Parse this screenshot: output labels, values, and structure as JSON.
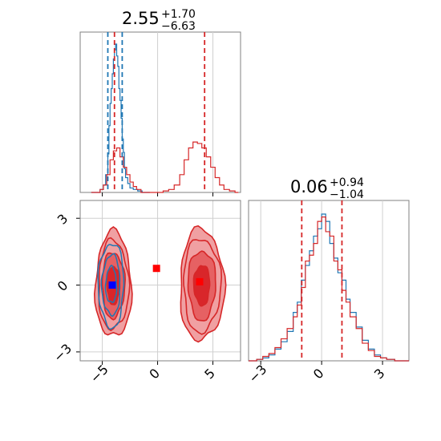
{
  "colors": {
    "red": "#d62728",
    "blue": "#1f77b4",
    "red_fill_light": "#f0a0a2",
    "red_fill_mid": "#e66163",
    "red_fill_dark": "#d9262a",
    "blue_fill": "#e9eef6",
    "grid": "#d0d0d0",
    "frame": "#808080",
    "marker_red": "#ff0000",
    "marker_blue": "#0000ff"
  },
  "chart_data": [
    {
      "type": "histogram",
      "panel": "marginal-param-1",
      "title": {
        "value": "2.55",
        "upper": "+1.70",
        "lower": "−6.63"
      },
      "xlim": [
        -7.0,
        7.5
      ],
      "x_ticks": [
        -5,
        0,
        5
      ],
      "series": [
        {
          "color_key": "blue",
          "bins_x": [
            -6.0,
            -5.6,
            -5.2,
            -4.9,
            -4.7,
            -4.5,
            -4.4,
            -4.3,
            -4.2,
            -4.1,
            -4.0,
            -3.9,
            -3.8,
            -3.7,
            -3.6,
            -3.5,
            -3.4,
            -3.3,
            -3.2,
            -3.1,
            -3.0,
            -2.9,
            -2.7,
            -2.5,
            -2.2,
            -1.8,
            -1.4,
            -1.0
          ],
          "bins_y": [
            0.0,
            0.0,
            0.02,
            0.05,
            0.12,
            0.26,
            0.45,
            0.6,
            0.7,
            0.8,
            0.9,
            0.96,
            1.0,
            0.92,
            0.85,
            0.7,
            0.62,
            0.5,
            0.36,
            0.27,
            0.16,
            0.1,
            0.06,
            0.03,
            0.02,
            0.01,
            0.0,
            0.0
          ]
        },
        {
          "color_key": "red",
          "bins_x": [
            -6.0,
            -5.6,
            -5.2,
            -4.9,
            -4.6,
            -4.3,
            -4.0,
            -3.7,
            -3.4,
            -3.1,
            -2.8,
            -2.5,
            -2.2,
            -1.9,
            -1.5,
            -1.0,
            -0.5,
            0.0,
            0.5,
            1.0,
            1.5,
            2.0,
            2.4,
            2.8,
            3.2,
            3.6,
            4.0,
            4.4,
            4.8,
            5.2,
            5.6,
            6.0,
            6.5,
            7.0
          ],
          "bins_y": [
            0.0,
            0.0,
            0.02,
            0.05,
            0.12,
            0.22,
            0.28,
            0.3,
            0.24,
            0.17,
            0.12,
            0.07,
            0.04,
            0.02,
            0.0,
            0.0,
            0.0,
            0.0,
            0.01,
            0.02,
            0.05,
            0.12,
            0.22,
            0.3,
            0.34,
            0.33,
            0.3,
            0.24,
            0.17,
            0.1,
            0.05,
            0.02,
            0.01,
            0.0
          ]
        }
      ],
      "quantile_lines": [
        {
          "x": -4.5,
          "color_key": "blue"
        },
        {
          "x": -3.2,
          "color_key": "blue"
        },
        {
          "x": -3.9,
          "color_key": "red"
        },
        {
          "x": 4.25,
          "color_key": "red"
        }
      ]
    },
    {
      "type": "histogram",
      "panel": "marginal-param-2",
      "title": {
        "value": "0.06",
        "upper": "+0.94",
        "lower": "−1.04"
      },
      "xlim": [
        -3.6,
        4.3
      ],
      "x_ticks": [
        -3,
        0,
        3
      ],
      "series": [
        {
          "color_key": "blue",
          "bins_x": [
            -3.6,
            -3.2,
            -2.9,
            -2.6,
            -2.3,
            -2.0,
            -1.7,
            -1.4,
            -1.2,
            -1.0,
            -0.8,
            -0.6,
            -0.4,
            -0.2,
            0.0,
            0.2,
            0.4,
            0.6,
            0.8,
            1.0,
            1.2,
            1.4,
            1.7,
            2.0,
            2.3,
            2.6,
            2.9,
            3.2,
            3.6,
            4.0
          ],
          "bins_y": [
            0.0,
            0.01,
            0.02,
            0.04,
            0.08,
            0.13,
            0.2,
            0.33,
            0.4,
            0.55,
            0.65,
            0.75,
            0.85,
            0.9,
            1.0,
            0.95,
            0.8,
            0.7,
            0.6,
            0.55,
            0.42,
            0.33,
            0.23,
            0.14,
            0.08,
            0.04,
            0.02,
            0.01,
            0.0,
            0.0
          ]
        },
        {
          "color_key": "red",
          "bins_x": [
            -3.6,
            -3.2,
            -2.9,
            -2.6,
            -2.3,
            -2.0,
            -1.7,
            -1.4,
            -1.2,
            -1.0,
            -0.8,
            -0.6,
            -0.4,
            -0.2,
            0.0,
            0.2,
            0.4,
            0.6,
            0.8,
            1.0,
            1.2,
            1.4,
            1.7,
            2.0,
            2.3,
            2.6,
            2.9,
            3.2,
            3.6,
            4.0
          ],
          "bins_y": [
            0.0,
            0.01,
            0.03,
            0.05,
            0.09,
            0.15,
            0.22,
            0.3,
            0.38,
            0.5,
            0.68,
            0.72,
            0.8,
            0.95,
            0.98,
            0.88,
            0.85,
            0.68,
            0.62,
            0.48,
            0.4,
            0.3,
            0.22,
            0.12,
            0.07,
            0.03,
            0.02,
            0.01,
            0.0,
            0.0
          ]
        }
      ],
      "quantile_lines": [
        {
          "x": -0.98,
          "color_key": "red"
        },
        {
          "x": 1.0,
          "color_key": "red"
        }
      ]
    },
    {
      "type": "contour",
      "panel": "joint-param-1-vs-param-2",
      "xlim": [
        -7.0,
        7.5
      ],
      "ylim": [
        -3.4,
        3.8
      ],
      "x_ticks": [
        -5,
        0,
        5
      ],
      "y_ticks": [
        -3,
        0,
        3
      ],
      "red_modes": [
        {
          "cx": -4.0,
          "cy": 0.0,
          "sx": 1.3,
          "sy": 1.9
        },
        {
          "cx": 4.0,
          "cy": 0.0,
          "sx": 1.6,
          "sy": 2.0
        }
      ],
      "blue_modes": [
        {
          "cx": -4.2,
          "cy": 0.0,
          "sx": 1.1,
          "sy": 1.8
        }
      ],
      "markers": [
        {
          "x": -0.1,
          "y": 0.75,
          "color_key": "marker_red"
        },
        {
          "x": 3.8,
          "y": 0.15,
          "color_key": "marker_red"
        },
        {
          "x": -4.1,
          "y": 0.0,
          "color_key": "marker_blue"
        }
      ]
    }
  ]
}
